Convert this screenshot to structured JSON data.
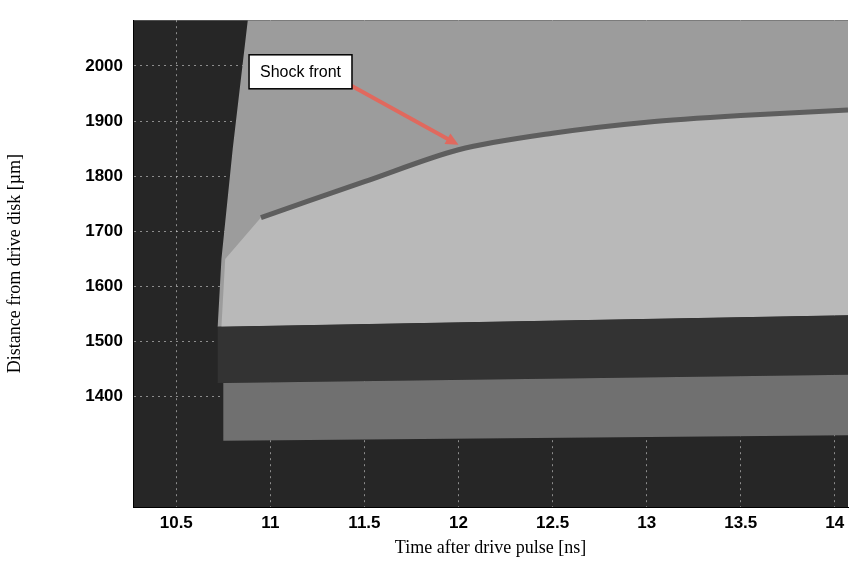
{
  "chart_data": {
    "type": "image",
    "x_label": "Time after drive pulse [ns]",
    "y_label": "Distance from drive disk [µm]",
    "xlim": [
      10.27,
      14.07
    ],
    "ylim": [
      1200,
      2083
    ],
    "xticks": [
      10.5,
      11,
      11.5,
      12,
      12.5,
      13,
      13.5,
      14
    ],
    "yticks": [
      1400,
      1500,
      1600,
      1700,
      1800,
      1900,
      2000
    ],
    "grid": true,
    "regions": [
      {
        "color": "#9c9c9c",
        "x": [
          10.88,
          14.07,
          14.07,
          10.72,
          10.74,
          10.8
        ],
        "y": [
          2083,
          2083,
          1548,
          1527,
          1650,
          1850
        ]
      },
      {
        "color": "#b9b9b9",
        "x": [
          10.95,
          11.2,
          11.5,
          12.0,
          12.5,
          13.0,
          13.5,
          14.07,
          14.07,
          10.74,
          10.76
        ],
        "y": [
          1725,
          1755,
          1790,
          1848,
          1878,
          1898,
          1910,
          1920,
          1548,
          1527,
          1650
        ]
      },
      {
        "color": "#333333",
        "x": [
          10.72,
          14.07,
          14.07,
          10.72
        ],
        "y": [
          1527,
          1548,
          1440,
          1425
        ]
      },
      {
        "color": "#707070",
        "x": [
          10.75,
          14.07,
          14.07,
          10.75
        ],
        "y": [
          1425,
          1440,
          1330,
          1320
        ]
      }
    ],
    "shock_front": {
      "color": "#5e5e5e",
      "x": [
        10.95,
        11.2,
        11.5,
        12.0,
        12.5,
        13.0,
        13.5,
        14.07
      ],
      "y": [
        1725,
        1755,
        1790,
        1848,
        1878,
        1898,
        1910,
        1920
      ]
    },
    "annotations": [
      {
        "text": "Shock front",
        "x": 12.0,
        "y": 1857
      }
    ]
  }
}
